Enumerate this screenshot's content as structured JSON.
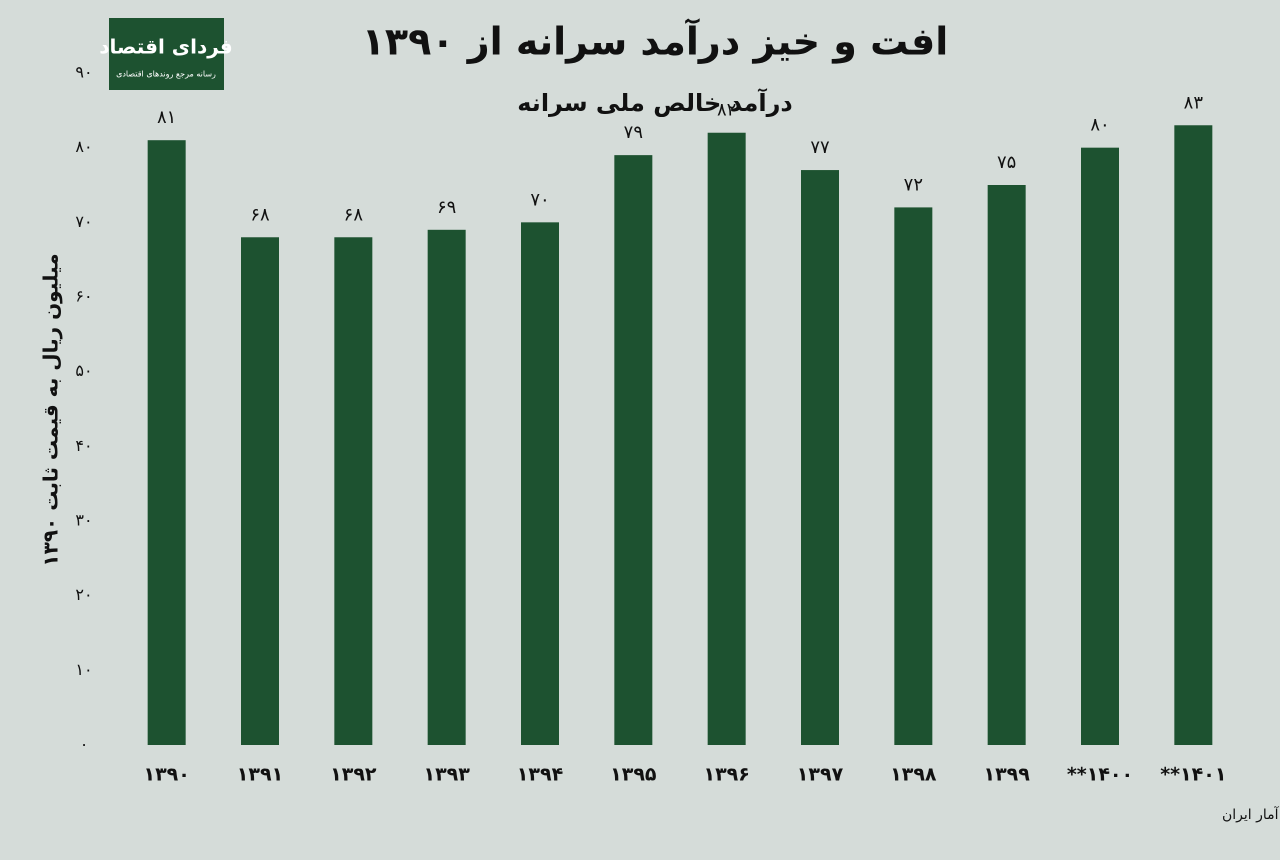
{
  "logo": {
    "title": "فردای اقتصاد",
    "tagline": "رسانه مرجع روندهای اقتصادی"
  },
  "chart_data": {
    "type": "bar",
    "title": "افت و خیز درآمد سرانه از ۱۳۹۰",
    "subtitle": "درآمد خالص ملی سرانه",
    "y_label": "میلیون ریال به قیمت ثابت ۱۳۹۰",
    "source": "منبع: مرکز آمار ایران",
    "categories": [
      "۱۳۹۰",
      "۱۳۹۱",
      "۱۳۹۲",
      "۱۳۹۳",
      "۱۳۹۴",
      "۱۳۹۵",
      "۱۳۹۶",
      "۱۳۹۷",
      "۱۳۹۸",
      "۱۳۹۹",
      "**۱۴۰۰",
      "**۱۴۰۱"
    ],
    "values": [
      81,
      68,
      68,
      69,
      70,
      79,
      82,
      77,
      72,
      75,
      80,
      83
    ],
    "value_labels": [
      "۸۱",
      "۶۸",
      "۶۸",
      "۶۹",
      "۷۰",
      "۷۹",
      "۸۲",
      "۷۷",
      "۷۲",
      "۷۵",
      "۸۰",
      "۸۳"
    ],
    "color": "#1d5230",
    "ylim": [
      0,
      90
    ],
    "yticks": [
      {
        "value": 0,
        "label": "۰"
      },
      {
        "value": 10,
        "label": "۱۰"
      },
      {
        "value": 20,
        "label": "۲۰"
      },
      {
        "value": 30,
        "label": "۳۰"
      },
      {
        "value": 40,
        "label": "۴۰"
      },
      {
        "value": 50,
        "label": "۵۰"
      },
      {
        "value": 60,
        "label": "۶۰"
      },
      {
        "value": 70,
        "label": "۷۰"
      },
      {
        "value": 80,
        "label": "۸۰"
      },
      {
        "value": 90,
        "label": "۹۰"
      }
    ],
    "grid": false
  }
}
